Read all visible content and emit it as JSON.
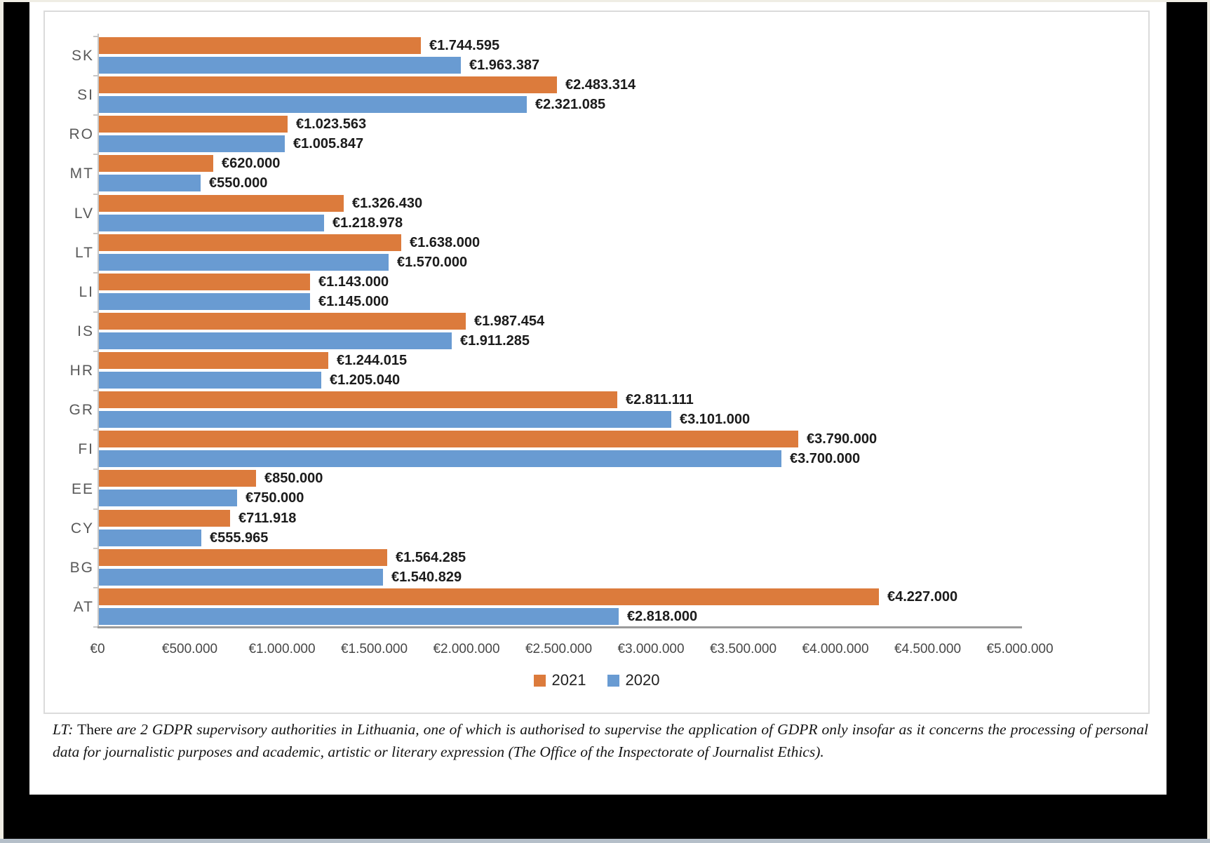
{
  "page": {
    "background_color": "#EFEDE4",
    "scan_border_color": "#000000"
  },
  "chart_data": {
    "type": "bar",
    "orientation": "horizontal",
    "categories_top_to_bottom": [
      "SK",
      "SI",
      "RO",
      "MT",
      "LV",
      "LT",
      "LI",
      "IS",
      "HR",
      "GR",
      "FI",
      "EE",
      "CY",
      "BG",
      "AT"
    ],
    "series": [
      {
        "name": "2021",
        "color": "#DC7B3C",
        "values": [
          1744595,
          2483314,
          1023563,
          620000,
          1326430,
          1638000,
          1143000,
          1987454,
          1244015,
          2811111,
          3790000,
          850000,
          711918,
          1564285,
          4227000
        ],
        "labels": [
          "€1.744.595",
          "€2.483.314",
          "€1.023.563",
          "€620.000",
          "€1.326.430",
          "€1.638.000",
          "€1.143.000",
          "€1.987.454",
          "€1.244.015",
          "€2.811.111",
          "€3.790.000",
          "€850.000",
          "€711.918",
          "€1.564.285",
          "€4.227.000"
        ]
      },
      {
        "name": "2020",
        "color": "#699BD2",
        "values": [
          1963387,
          2321085,
          1005847,
          550000,
          1218978,
          1570000,
          1145000,
          1911285,
          1205040,
          3101000,
          3700000,
          750000,
          555965,
          1540829,
          2818000
        ],
        "labels": [
          "€1.963.387",
          "€2.321.085",
          "€1.005.847",
          "€550.000",
          "€1.218.978",
          "€1.570.000",
          "€1.145.000",
          "€1.911.285",
          "€1.205.040",
          "€3.101.000",
          "€3.700.000",
          "€750.000",
          "€555.965",
          "€1.540.829",
          "€2.818.000"
        ]
      }
    ],
    "x_axis": {
      "min": 0,
      "max": 5000000,
      "ticks": [
        "€0",
        "€500.000",
        "€1.000.000",
        "€1.500.000",
        "€2.000.000",
        "€2.500.000",
        "€3.000.000",
        "€3.500.000",
        "€4.000.000",
        "€4.500.000",
        "€5.000.000"
      ]
    },
    "legend": {
      "position": "bottom",
      "entries": [
        {
          "label": "2021",
          "color": "#DC7B3C"
        },
        {
          "label": "2020",
          "color": "#699BD2"
        }
      ]
    },
    "grid": "off",
    "title": "",
    "xlabel": "",
    "ylabel": ""
  },
  "footnote": {
    "segments": [
      {
        "text": "LT:",
        "style": "italic"
      },
      {
        "text": " There ",
        "style": "normal"
      },
      {
        "text": "are 2 GDPR supervisory authorities in Lithuania, one of which is authorised to supervise the application of GDPR only insofar as it concerns the processing of personal data for journalistic purposes and academic, artistic or literary expression (The Office of the Inspectorate of Journalist Ethics).",
        "style": "italic"
      }
    ]
  }
}
